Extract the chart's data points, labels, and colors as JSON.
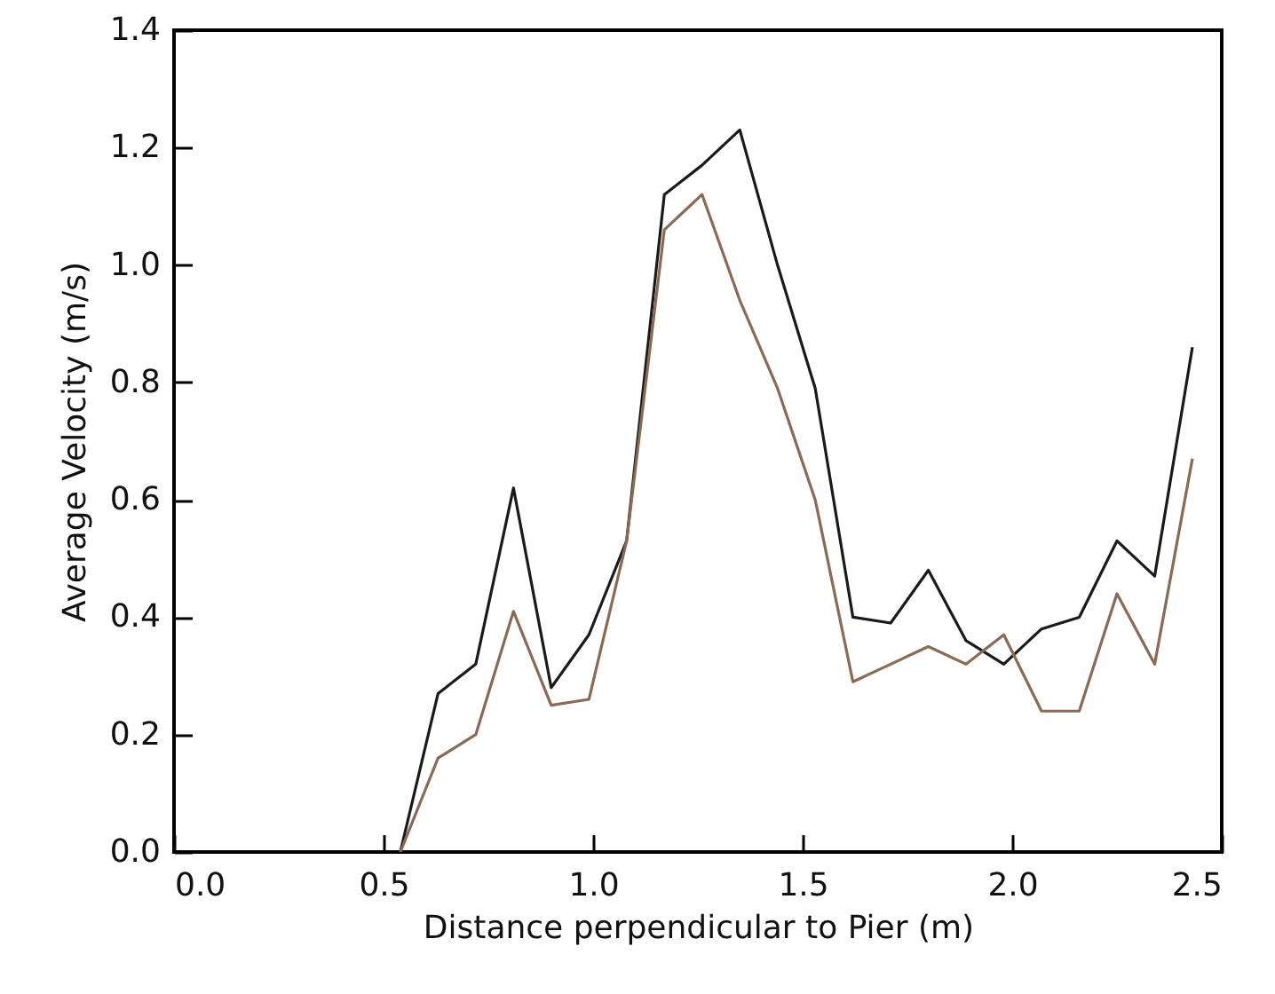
{
  "chart_data": {
    "type": "line",
    "xlabel": "Distance perpendicular to Pier (m)",
    "ylabel": "Average Velocity (m/s)",
    "xlim": [
      0,
      2.5
    ],
    "xticks": [
      {
        "value": 0,
        "label": "0.0"
      },
      {
        "value": 0.5,
        "label": "0.5"
      },
      {
        "value": 1,
        "label": "1.0"
      },
      {
        "value": 1.5,
        "label": "1.5"
      },
      {
        "value": 2,
        "label": "2.0"
      },
      {
        "value": 2.5,
        "label": "2.5"
      }
    ],
    "ylim": [
      0,
      1.4
    ],
    "yticks": [
      {
        "value": 0,
        "label": "0.0"
      },
      {
        "value": 0.2,
        "label": "0.2"
      },
      {
        "value": 0.4,
        "label": "0.4"
      },
      {
        "value": 0.6,
        "label": "0.6"
      },
      {
        "value": 0.8,
        "label": "0.8"
      },
      {
        "value": 1,
        "label": "1.0"
      },
      {
        "value": 1.2,
        "label": "1.2"
      },
      {
        "value": 1.4,
        "label": "1.4"
      }
    ],
    "x": [
      0.54,
      0.63,
      0.72,
      0.81,
      0.9,
      0.99,
      1.08,
      1.17,
      1.26,
      1.35,
      1.44,
      1.53,
      1.62,
      1.71,
      1.8,
      1.89,
      1.98,
      2.07,
      2.16,
      2.25,
      2.34,
      2.43
    ],
    "series": [
      {
        "color": "#1a1a1a",
        "values": [
          0,
          0.27,
          0.32,
          0.62,
          0.28,
          0.37,
          0.53,
          1.12,
          1.17,
          1.23,
          1.0,
          0.79,
          0.4,
          0.39,
          0.48,
          0.36,
          0.32,
          0.38,
          0.4,
          0.53,
          0.47,
          0.86
        ]
      },
      {
        "color": "#8a6a55",
        "values": [
          0,
          0.16,
          0.2,
          0.41,
          0.25,
          0.26,
          0.53,
          1.06,
          1.12,
          0.94,
          0.79,
          0.6,
          0.29,
          0.32,
          0.35,
          0.32,
          0.37,
          0.24,
          0.24,
          0.44,
          0.32,
          0.67
        ]
      }
    ],
    "grid": false,
    "line_style": "solid"
  }
}
